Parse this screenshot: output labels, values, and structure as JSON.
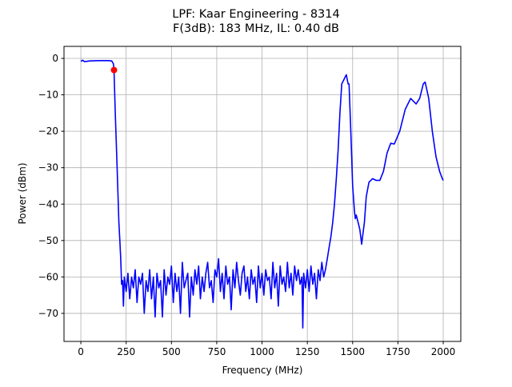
{
  "chart_data": {
    "type": "line",
    "title": "LPF: Kaar Engineering - 8314",
    "subtitle": "F(3dB): 183 MHz, IL: 0.40 dB",
    "xlabel": "Frequency (MHz)",
    "ylabel": "Power (dBm)",
    "xlim": [
      -93,
      2097
    ],
    "ylim": [
      -77.7,
      3.3
    ],
    "xticks": [
      0,
      250,
      500,
      750,
      1000,
      1250,
      1500,
      1750,
      2000
    ],
    "yticks": [
      0,
      -10,
      -20,
      -30,
      -40,
      -50,
      -60,
      -70
    ],
    "grid": true,
    "line_color": "#0000ff",
    "marker_color": "#ff0000",
    "marker": {
      "x": 183,
      "y": -3.2
    },
    "x": [
      0,
      10,
      20,
      50,
      100,
      150,
      170,
      180,
      183,
      190,
      200,
      210,
      215,
      220,
      225,
      230,
      235,
      240,
      250,
      260,
      270,
      280,
      290,
      300,
      310,
      320,
      330,
      340,
      350,
      360,
      370,
      380,
      390,
      400,
      410,
      420,
      430,
      440,
      450,
      460,
      470,
      480,
      490,
      500,
      510,
      520,
      530,
      540,
      550,
      560,
      570,
      580,
      590,
      600,
      610,
      620,
      630,
      640,
      650,
      660,
      670,
      680,
      690,
      700,
      710,
      720,
      730,
      740,
      750,
      760,
      770,
      780,
      790,
      800,
      810,
      820,
      830,
      840,
      850,
      860,
      870,
      880,
      890,
      900,
      910,
      920,
      930,
      940,
      950,
      960,
      970,
      980,
      990,
      1000,
      1010,
      1020,
      1030,
      1040,
      1050,
      1060,
      1070,
      1080,
      1090,
      1100,
      1110,
      1120,
      1130,
      1140,
      1150,
      1160,
      1170,
      1180,
      1190,
      1200,
      1210,
      1220,
      1225,
      1230,
      1240,
      1250,
      1260,
      1270,
      1280,
      1290,
      1300,
      1310,
      1320,
      1330,
      1340,
      1350,
      1360,
      1370,
      1380,
      1390,
      1400,
      1410,
      1420,
      1430,
      1440,
      1450,
      1460,
      1465,
      1475,
      1480,
      1490,
      1500,
      1510,
      1515,
      1520,
      1530,
      1540,
      1550,
      1555,
      1565,
      1575,
      1590,
      1610,
      1630,
      1650,
      1670,
      1690,
      1710,
      1730,
      1760,
      1790,
      1820,
      1850,
      1870,
      1890,
      1900,
      1920,
      1940,
      1960,
      1980,
      1995,
      2000
    ],
    "y": [
      -0.8,
      -0.5,
      -0.9,
      -0.7,
      -0.6,
      -0.6,
      -0.7,
      -1.5,
      -3.2,
      -15,
      -30,
      -45,
      -50,
      -55,
      -62,
      -61,
      -68,
      -60,
      -64,
      -59,
      -66,
      -60,
      -63,
      -58,
      -67,
      -60,
      -62,
      -59,
      -70,
      -61,
      -64,
      -58,
      -66,
      -60,
      -71,
      -59,
      -63,
      -61,
      -71,
      -58,
      -65,
      -60,
      -62,
      -57,
      -67,
      -59,
      -64,
      -60,
      -70,
      -56,
      -63,
      -61,
      -59,
      -71,
      -60,
      -65,
      -58,
      -62,
      -57,
      -66,
      -60,
      -64,
      -59,
      -56,
      -63,
      -61,
      -67,
      -58,
      -60,
      -55,
      -64,
      -59,
      -66,
      -57,
      -62,
      -60,
      -69,
      -58,
      -63,
      -56,
      -61,
      -65,
      -59,
      -57,
      -64,
      -60,
      -66,
      -58,
      -62,
      -60,
      -67,
      -57,
      -63,
      -59,
      -65,
      -58,
      -61,
      -60,
      -66,
      -56,
      -63,
      -59,
      -68,
      -57,
      -62,
      -60,
      -64,
      -56,
      -63,
      -59,
      -65,
      -57,
      -61,
      -58,
      -62,
      -60,
      -74,
      -59,
      -63,
      -58,
      -64,
      -57,
      -62,
      -59,
      -66,
      -58,
      -61,
      -56,
      -60,
      -58,
      -55,
      -52,
      -49,
      -45,
      -40,
      -33,
      -25,
      -15,
      -7,
      -6,
      -5,
      -4.5,
      -7,
      -7,
      -20,
      -35,
      -42,
      -44,
      -43,
      -45,
      -47,
      -51,
      -49,
      -45,
      -38,
      -34,
      -33,
      -33.5,
      -33.5,
      -31,
      -26,
      -23.3,
      -23.5,
      -20,
      -14,
      -11,
      -12.5,
      -11,
      -7,
      -6.5,
      -11,
      -20,
      -27,
      -31,
      -33,
      -33.5
    ]
  }
}
